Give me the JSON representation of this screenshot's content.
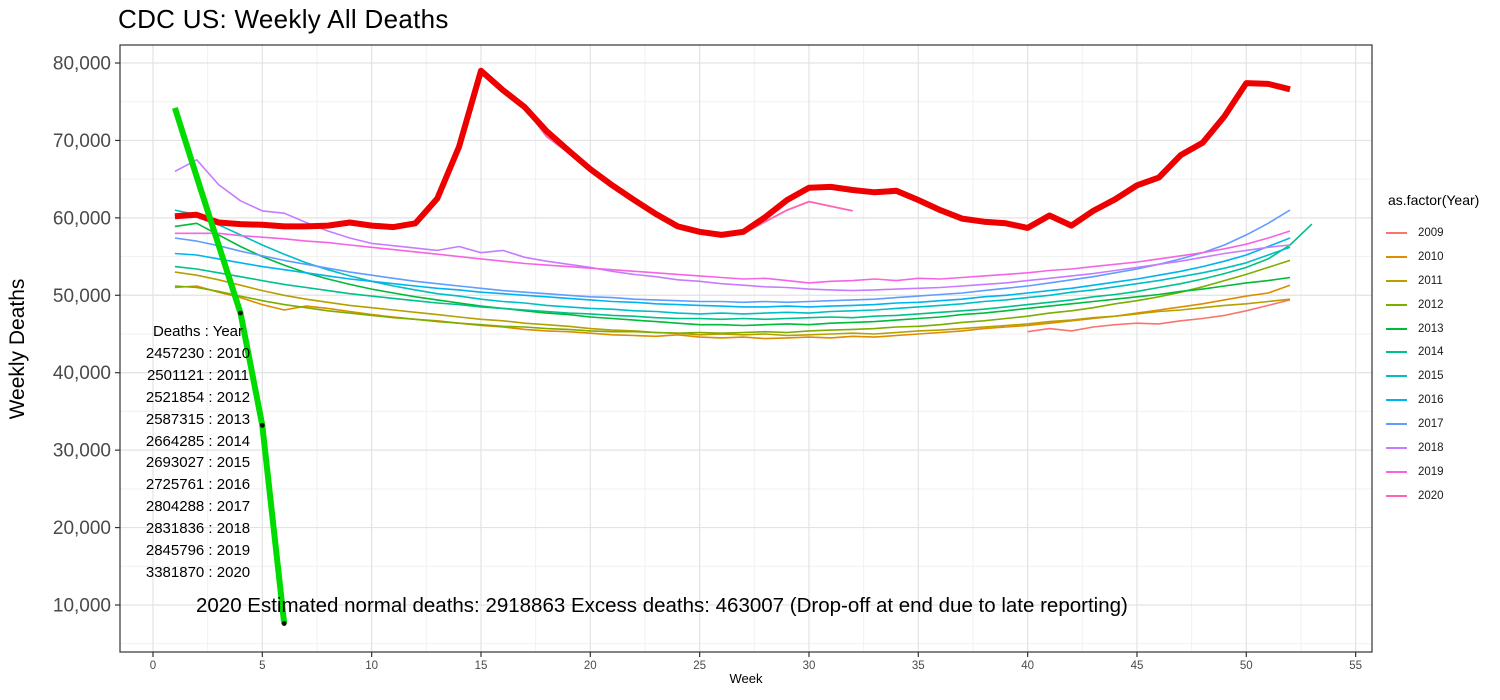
{
  "chart_data": {
    "type": "line",
    "title": "CDC US: Weekly All Deaths",
    "xlabel": "Week",
    "ylabel": "Weekly Deaths",
    "x_ticks": [
      0,
      5,
      10,
      15,
      20,
      25,
      30,
      35,
      40,
      45,
      50,
      55
    ],
    "y_ticks": [
      {
        "value": 10000,
        "label": "10,000"
      },
      {
        "value": 20000,
        "label": "20,000"
      },
      {
        "value": 30000,
        "label": "30,000"
      },
      {
        "value": 40000,
        "label": "40,000"
      },
      {
        "value": 50000,
        "label": "50,000"
      },
      {
        "value": 60000,
        "label": "60,000"
      },
      {
        "value": 70000,
        "label": "70,000"
      },
      {
        "value": 80000,
        "label": "80,000"
      }
    ],
    "xlim": [
      -1.5,
      55.7
    ],
    "ylim": [
      4000,
      82300
    ],
    "grid": "major and minor, light gray on white panel with dark border",
    "legend_position": "right",
    "legend": {
      "title": "as.factor(Year)",
      "items": [
        {
          "label": "2009",
          "color": "#F8766D"
        },
        {
          "label": "2010",
          "color": "#DE8C00"
        },
        {
          "label": "2011",
          "color": "#B79F00"
        },
        {
          "label": "2012",
          "color": "#7CAE00"
        },
        {
          "label": "2013",
          "color": "#00BA38"
        },
        {
          "label": "2014",
          "color": "#00C08B"
        },
        {
          "label": "2015",
          "color": "#00BFC4"
        },
        {
          "label": "2016",
          "color": "#00B4F0"
        },
        {
          "label": "2017",
          "color": "#619CFF"
        },
        {
          "label": "2018",
          "color": "#C77CFF"
        },
        {
          "label": "2019",
          "color": "#F564E3"
        },
        {
          "label": "2020",
          "color": "#FF64B0"
        }
      ]
    },
    "series": [
      {
        "name": "2009",
        "color": "#F8766D",
        "width": 1.6,
        "start_week": 40,
        "values": [
          45300,
          45700,
          45400,
          45900,
          46200,
          46400,
          46300,
          46700,
          47000,
          47400,
          48000,
          48700,
          49400
        ]
      },
      {
        "name": "2010",
        "color": "#DE8C00",
        "width": 1.6,
        "start_week": 1,
        "values": [
          51000,
          51200,
          50400,
          49700,
          48800,
          48100,
          48600,
          48300,
          47900,
          47500,
          47200,
          46900,
          46700,
          46400,
          46100,
          45900,
          45600,
          45400,
          45300,
          45100,
          44900,
          44800,
          44700,
          44900,
          44600,
          44500,
          44600,
          44400,
          44500,
          44600,
          44500,
          44700,
          44600,
          44800,
          45000,
          45200,
          45400,
          45700,
          45900,
          46100,
          46400,
          46700,
          47000,
          47300,
          47700,
          48100,
          48500,
          48900,
          49400,
          49900,
          50300,
          51300
        ]
      },
      {
        "name": "2011",
        "color": "#B79F00",
        "width": 1.6,
        "start_week": 1,
        "values": [
          53000,
          52600,
          52000,
          51300,
          50600,
          50000,
          49500,
          49100,
          48700,
          48400,
          48100,
          47800,
          47500,
          47200,
          46900,
          46700,
          46400,
          46200,
          46000,
          45700,
          45500,
          45400,
          45200,
          45100,
          44900,
          45000,
          44900,
          45000,
          44800,
          44900,
          45000,
          45100,
          45000,
          45200,
          45400,
          45500,
          45700,
          45900,
          46100,
          46300,
          46600,
          46800,
          47100,
          47300,
          47600,
          47900,
          48100,
          48400,
          48700,
          48900,
          49200,
          49500
        ]
      },
      {
        "name": "2012",
        "color": "#7CAE00",
        "width": 1.6,
        "start_week": 1,
        "values": [
          51200,
          51000,
          50500,
          49900,
          49300,
          48800,
          48400,
          48000,
          47700,
          47400,
          47100,
          46900,
          46600,
          46400,
          46200,
          46000,
          45900,
          45700,
          45600,
          45400,
          45300,
          45300,
          45200,
          45100,
          45200,
          45100,
          45200,
          45300,
          45200,
          45400,
          45500,
          45600,
          45700,
          45900,
          46000,
          46200,
          46500,
          46700,
          47000,
          47300,
          47700,
          48000,
          48400,
          48900,
          49300,
          49800,
          50400,
          51100,
          51900,
          52700,
          53600,
          54500
        ]
      },
      {
        "name": "2013",
        "color": "#00BA38",
        "width": 1.6,
        "start_week": 1,
        "values": [
          58900,
          59300,
          57800,
          56300,
          55000,
          53900,
          52900,
          52100,
          51400,
          50800,
          50300,
          49800,
          49400,
          49000,
          48600,
          48300,
          48000,
          47700,
          47500,
          47200,
          47000,
          46800,
          46600,
          46400,
          46200,
          46200,
          46100,
          46200,
          46300,
          46200,
          46400,
          46500,
          46600,
          46800,
          47000,
          47200,
          47500,
          47700,
          48000,
          48300,
          48600,
          48900,
          49200,
          49500,
          49800,
          50100,
          50500,
          50800,
          51200,
          51600,
          51900,
          52300
        ]
      },
      {
        "name": "2014",
        "color": "#00C08B",
        "width": 1.6,
        "start_week": 1,
        "values": [
          53700,
          53400,
          52900,
          52400,
          51900,
          51400,
          51000,
          50600,
          50200,
          49900,
          49600,
          49300,
          49000,
          48800,
          48500,
          48300,
          48100,
          47900,
          47700,
          47600,
          47400,
          47300,
          47100,
          47000,
          47000,
          46900,
          47000,
          46900,
          47000,
          47100,
          47200,
          47100,
          47300,
          47400,
          47600,
          47800,
          48000,
          48200,
          48500,
          48800,
          49100,
          49400,
          49800,
          50100,
          50500,
          51000,
          51500,
          52100,
          52800,
          53600,
          54700,
          56500,
          59200
        ]
      },
      {
        "name": "2015",
        "color": "#00BFC4",
        "width": 1.6,
        "start_week": 1,
        "values": [
          61000,
          60400,
          59100,
          57800,
          56500,
          55300,
          54200,
          53300,
          52500,
          51800,
          51200,
          50700,
          50200,
          49900,
          49500,
          49200,
          49000,
          48700,
          48500,
          48300,
          48200,
          48000,
          47900,
          47700,
          47600,
          47700,
          47600,
          47700,
          47800,
          47700,
          47900,
          48000,
          48100,
          48300,
          48500,
          48700,
          48900,
          49200,
          49400,
          49700,
          50000,
          50400,
          50700,
          51100,
          51500,
          51900,
          52400,
          52900,
          53500,
          54200,
          55200,
          56200
        ]
      },
      {
        "name": "2016",
        "color": "#00B4F0",
        "width": 1.6,
        "start_week": 1,
        "values": [
          55400,
          55200,
          54700,
          54200,
          53700,
          53300,
          52900,
          52500,
          52100,
          51800,
          51500,
          51200,
          50900,
          50700,
          50400,
          50200,
          50000,
          49800,
          49600,
          49400,
          49200,
          49100,
          48900,
          48800,
          48700,
          48600,
          48500,
          48500,
          48600,
          48500,
          48600,
          48700,
          48800,
          49000,
          49100,
          49300,
          49500,
          49800,
          50000,
          50300,
          50600,
          50900,
          51300,
          51700,
          52100,
          52600,
          53100,
          53700,
          54400,
          55200,
          56300,
          57400
        ]
      },
      {
        "name": "2017",
        "color": "#619CFF",
        "width": 1.6,
        "start_week": 1,
        "values": [
          57400,
          57000,
          56400,
          55700,
          55100,
          54500,
          54000,
          53500,
          53000,
          52600,
          52200,
          51800,
          51500,
          51200,
          50900,
          50600,
          50400,
          50200,
          50000,
          49800,
          49700,
          49500,
          49400,
          49300,
          49200,
          49200,
          49100,
          49200,
          49100,
          49200,
          49300,
          49400,
          49500,
          49700,
          49900,
          50100,
          50300,
          50600,
          50900,
          51200,
          51600,
          52000,
          52400,
          52900,
          53400,
          54000,
          54700,
          55500,
          56500,
          57800,
          59300,
          61000
        ]
      },
      {
        "name": "2018",
        "color": "#C77CFF",
        "width": 1.6,
        "start_week": 1,
        "values": [
          66000,
          67500,
          64300,
          62200,
          60900,
          60600,
          59400,
          58300,
          57400,
          56700,
          56400,
          56100,
          55800,
          56300,
          55500,
          55800,
          54900,
          54400,
          54000,
          53600,
          53100,
          52700,
          52400,
          52000,
          51800,
          51500,
          51300,
          51100,
          51000,
          50800,
          50700,
          50600,
          50700,
          50800,
          50900,
          51000,
          51200,
          51400,
          51600,
          51900,
          52200,
          52500,
          52800,
          53200,
          53600,
          54000,
          54400,
          54900,
          55400,
          55800,
          56200,
          56500
        ]
      },
      {
        "name": "2019",
        "color": "#F564E3",
        "width": 1.6,
        "start_week": 1,
        "values": [
          58000,
          58000,
          58000,
          57700,
          57500,
          57300,
          57000,
          56800,
          56500,
          56200,
          55900,
          55600,
          55300,
          55000,
          54700,
          54400,
          54100,
          53900,
          53700,
          53500,
          53300,
          53100,
          52900,
          52700,
          52500,
          52300,
          52100,
          52200,
          51900,
          51600,
          51800,
          51900,
          52100,
          51900,
          52200,
          52100,
          52300,
          52500,
          52700,
          52900,
          53200,
          53400,
          53700,
          54000,
          54300,
          54700,
          55100,
          55500,
          56000,
          56600,
          57400,
          58300
        ]
      },
      {
        "name": "2020",
        "color": "#FF64B0",
        "width": 1.8,
        "start_week": 1,
        "values": [
          60200,
          60400,
          59400,
          59200,
          59100,
          58900,
          58900,
          59000,
          59400,
          59000,
          58800,
          59300,
          62500,
          69200,
          78800,
          76300,
          74200,
          70500,
          68400,
          66200,
          64100,
          62200,
          60500,
          58900,
          58200,
          57700,
          58000,
          59500,
          61000,
          62100,
          61500,
          60900
        ]
      },
      {
        "name": "2020-highlight",
        "color": "#EE0000",
        "width": 6,
        "start_week": 1,
        "values": [
          60200,
          60400,
          59400,
          59200,
          59100,
          58900,
          58900,
          59000,
          59400,
          59000,
          58800,
          59300,
          62500,
          69200,
          79000,
          76500,
          74300,
          71200,
          68700,
          66300,
          64200,
          62300,
          60500,
          58900,
          58200,
          57800,
          58200,
          60100,
          62300,
          63900,
          64000,
          63600,
          63300,
          63500,
          62300,
          61000,
          59900,
          59500,
          59300,
          58700,
          60300,
          59000,
          60900,
          62400,
          64200,
          65200,
          68100,
          69700,
          73100,
          77400,
          77300,
          76600
        ]
      },
      {
        "name": "dropoff-late-reporting",
        "color": "#00DB00",
        "width": 6,
        "start_week": 1,
        "values": [
          74200,
          65300,
          56500,
          47700,
          33200,
          7600
        ]
      }
    ],
    "point_markers": [
      {
        "week": 4,
        "value": 47700
      },
      {
        "week": 5,
        "value": 33200
      },
      {
        "week": 6,
        "value": 7600
      }
    ],
    "annotations": {
      "deaths_table": [
        "Deaths : Year",
        "2457230 : 2010",
        "2501121 : 2011",
        "2521854 : 2012",
        "2587315 : 2013",
        "2664285 : 2014",
        "2693027 : 2015",
        "2725761 : 2016",
        "2804288 : 2017",
        "2831836 : 2018",
        "2845796 : 2019",
        "3381870 : 2020"
      ],
      "bottom_note": "2020 Estimated normal deaths: 2918863  Excess deaths: 463007  (Drop-off at end due to late reporting)"
    },
    "colors": {
      "highlight_red": "#EE0000",
      "dropoff_green": "#00DB00",
      "grid_major": "#e3e3e3",
      "grid_minor": "#f1f1f1",
      "panel_border": "#333333",
      "tick_text": "#4a4a4a"
    }
  }
}
